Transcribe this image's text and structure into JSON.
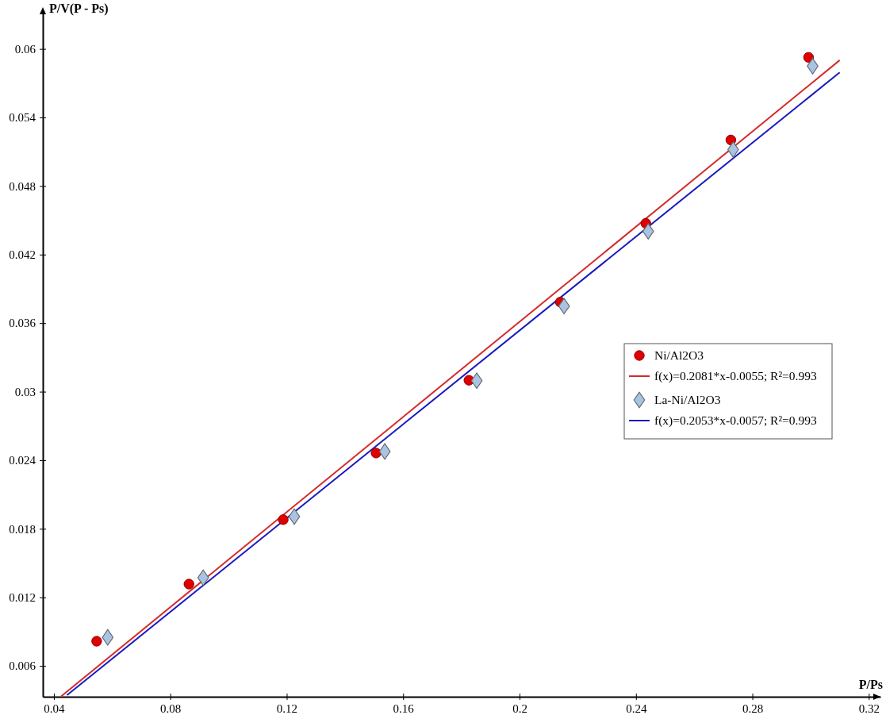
{
  "chart_data": {
    "type": "scatter",
    "xlabel": "P/Ps",
    "ylabel": "P/V(P - Ps)",
    "xlim": [
      0.0362,
      0.324
    ],
    "ylim": [
      0.0033,
      0.0631
    ],
    "xticks": [
      0.04,
      0.08,
      0.12,
      0.16,
      0.2,
      0.24,
      0.28,
      0.32
    ],
    "yticks": [
      0.006,
      0.012,
      0.018,
      0.024,
      0.03,
      0.036,
      0.042,
      0.048,
      0.054,
      0.06
    ],
    "legend": "right",
    "grid": false,
    "series": [
      {
        "name": "Ni/Al2O3",
        "marker": "circle",
        "color": "#e00000",
        "x": [
          0.0547,
          0.0864,
          0.1188,
          0.1507,
          0.1826,
          0.214,
          0.2434,
          0.2726,
          0.2993
        ],
        "values": [
          0.00816,
          0.01316,
          0.0188,
          0.02463,
          0.031,
          0.03784,
          0.04473,
          0.05203,
          0.05926
        ]
      },
      {
        "name": "f(x)=0.2081*x-0.0055; R²=0.993",
        "type": "line",
        "line_style": "solid",
        "color": "#d42a2a",
        "x": [
          0.0425,
          0.31
        ],
        "values": [
          0.00334,
          0.05901
        ]
      },
      {
        "name": "La-Ni/Al2O3",
        "marker": "diamond",
        "color": "#a9c3e0",
        "x": [
          0.0585,
          0.0913,
          0.1226,
          0.1537,
          0.1853,
          0.2153,
          0.2442,
          0.2734,
          0.3007
        ],
        "values": [
          0.0085,
          0.01372,
          0.01907,
          0.02477,
          0.03096,
          0.03749,
          0.04403,
          0.05119,
          0.05849
        ]
      },
      {
        "name": "f(x)=0.2053*x-0.0057; R²=0.993",
        "type": "line",
        "line_style": "solid",
        "color": "#1a1ac0",
        "x": [
          0.0445,
          0.31
        ],
        "values": [
          0.00344,
          0.05794
        ]
      }
    ]
  }
}
